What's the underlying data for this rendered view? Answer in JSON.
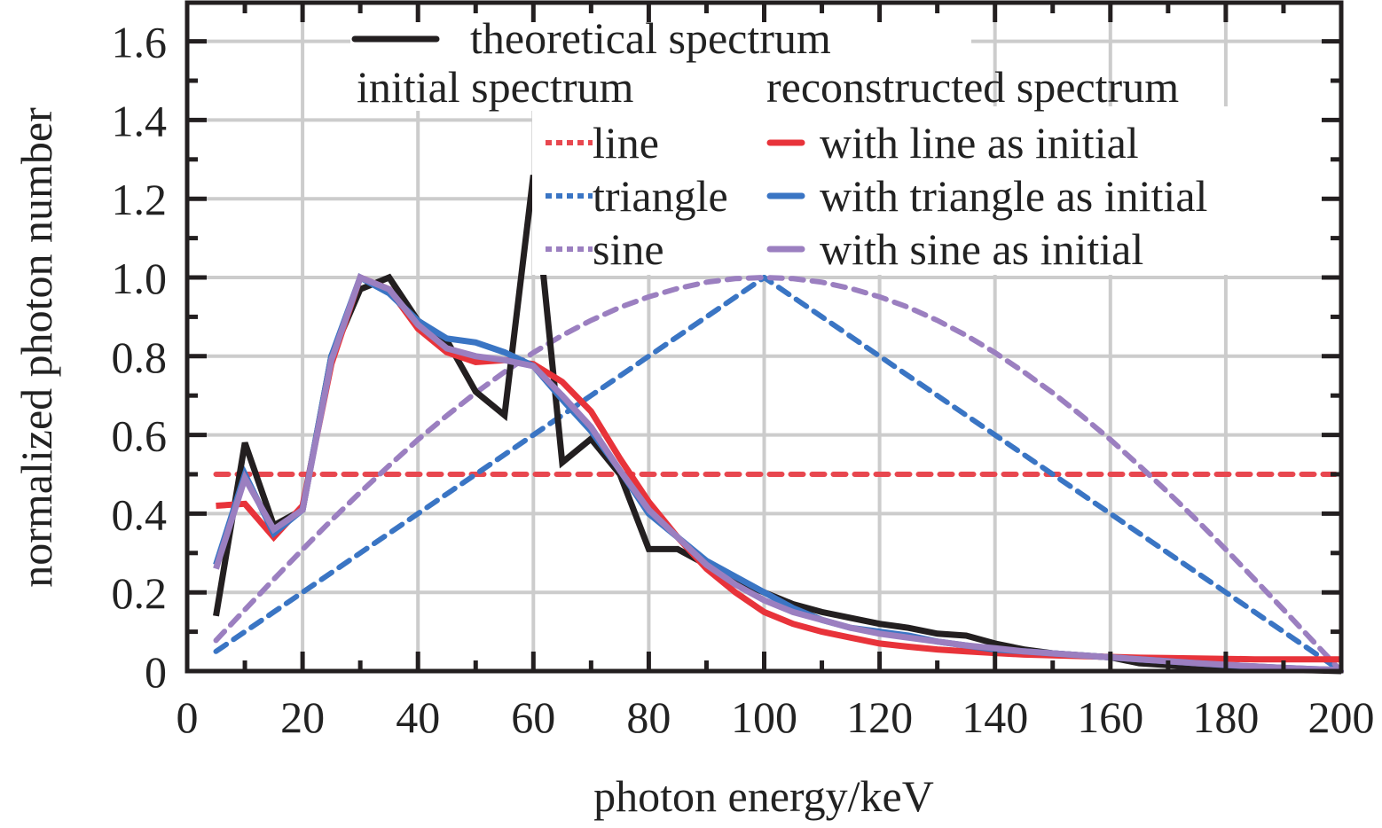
{
  "chart_data": {
    "type": "line",
    "title": "",
    "xlabel": "photon energy/keV",
    "ylabel": "normalized photon number",
    "xlim": [
      0,
      200
    ],
    "ylim": [
      0,
      1.7
    ],
    "x_ticks": [
      0,
      20,
      40,
      60,
      80,
      100,
      120,
      140,
      160,
      180,
      200
    ],
    "x_tick_labels": [
      "0",
      "20",
      "40",
      "60",
      "80",
      "100",
      "120",
      "140",
      "160",
      "180",
      "200"
    ],
    "y_ticks": [
      0,
      0.2,
      0.4,
      0.6,
      0.8,
      1.0,
      1.2,
      1.4,
      1.6
    ],
    "y_tick_labels": [
      "0",
      "0.2",
      "0.4",
      "0.6",
      "0.8",
      "1.0",
      "1.2",
      "1.4",
      "1.6"
    ],
    "grid": true,
    "legend": {
      "placement": "top-right",
      "header_theoretical": "theoretical spectrum",
      "header_initial": "initial spectrum",
      "header_reconstructed": "reconstructed spectrum",
      "initial_labels": [
        "line",
        "triangle",
        "sine"
      ],
      "reconstructed_labels": [
        "with line as initial",
        "with triangle as initial",
        "with sine as initial"
      ]
    },
    "x": [
      5,
      10,
      15,
      20,
      25,
      30,
      35,
      40,
      45,
      50,
      55,
      60,
      65,
      70,
      75,
      80,
      85,
      90,
      95,
      100,
      105,
      110,
      115,
      120,
      125,
      130,
      135,
      140,
      145,
      150,
      155,
      160,
      165,
      170,
      175,
      180,
      185,
      190,
      195,
      200
    ],
    "series": [
      {
        "name": "theoretical spectrum",
        "color": "#231f20",
        "style": "solid",
        "values": [
          0.14,
          0.58,
          0.37,
          0.41,
          0.8,
          0.97,
          1.0,
          0.89,
          0.84,
          0.71,
          0.65,
          1.26,
          0.53,
          0.59,
          0.5,
          0.31,
          0.31,
          0.27,
          0.23,
          0.2,
          0.17,
          0.15,
          0.135,
          0.12,
          0.11,
          0.095,
          0.09,
          0.07,
          0.055,
          0.045,
          0.04,
          0.035,
          0.02,
          0.015,
          0.01,
          0.008,
          0.005,
          0.003,
          0.002,
          0.0
        ]
      },
      {
        "name": "line",
        "color": "#e8474f",
        "style": "dashed",
        "values": [
          0.5,
          0.5,
          0.5,
          0.5,
          0.5,
          0.5,
          0.5,
          0.5,
          0.5,
          0.5,
          0.5,
          0.5,
          0.5,
          0.5,
          0.5,
          0.5,
          0.5,
          0.5,
          0.5,
          0.5,
          0.5,
          0.5,
          0.5,
          0.5,
          0.5,
          0.5,
          0.5,
          0.5,
          0.5,
          0.5,
          0.5,
          0.5,
          0.5,
          0.5,
          0.5,
          0.5,
          0.5,
          0.5,
          0.5,
          0.5
        ]
      },
      {
        "name": "triangle",
        "color": "#3a75c4",
        "style": "dashed",
        "values": [
          0.05,
          0.1,
          0.15,
          0.2,
          0.25,
          0.3,
          0.35,
          0.4,
          0.45,
          0.5,
          0.55,
          0.6,
          0.65,
          0.7,
          0.75,
          0.8,
          0.85,
          0.9,
          0.95,
          1.0,
          0.95,
          0.9,
          0.85,
          0.8,
          0.75,
          0.7,
          0.65,
          0.6,
          0.55,
          0.5,
          0.45,
          0.4,
          0.35,
          0.3,
          0.25,
          0.2,
          0.15,
          0.1,
          0.05,
          0.0
        ]
      },
      {
        "name": "sine",
        "color": "#9b7fc0",
        "style": "dashed",
        "values": [
          0.078,
          0.156,
          0.233,
          0.309,
          0.383,
          0.454,
          0.522,
          0.588,
          0.649,
          0.707,
          0.76,
          0.809,
          0.853,
          0.891,
          0.924,
          0.951,
          0.972,
          0.988,
          0.997,
          1.0,
          0.997,
          0.988,
          0.972,
          0.951,
          0.924,
          0.891,
          0.853,
          0.809,
          0.76,
          0.707,
          0.649,
          0.588,
          0.522,
          0.454,
          0.383,
          0.309,
          0.233,
          0.156,
          0.078,
          0.0
        ]
      },
      {
        "name": "with line as initial",
        "color": "#e8333a",
        "style": "solid",
        "values": [
          0.42,
          0.425,
          0.34,
          0.42,
          0.78,
          1.0,
          0.97,
          0.87,
          0.81,
          0.785,
          0.79,
          0.78,
          0.735,
          0.66,
          0.54,
          0.43,
          0.34,
          0.26,
          0.2,
          0.15,
          0.12,
          0.1,
          0.085,
          0.07,
          0.062,
          0.055,
          0.05,
          0.046,
          0.042,
          0.04,
          0.038,
          0.036,
          0.034,
          0.033,
          0.032,
          0.031,
          0.03,
          0.03,
          0.03,
          0.03
        ]
      },
      {
        "name": "with triangle as initial",
        "color": "#3a75c4",
        "style": "solid",
        "values": [
          0.27,
          0.5,
          0.35,
          0.41,
          0.8,
          1.0,
          0.96,
          0.89,
          0.845,
          0.835,
          0.81,
          0.775,
          0.69,
          0.61,
          0.51,
          0.4,
          0.34,
          0.28,
          0.24,
          0.2,
          0.16,
          0.13,
          0.11,
          0.1,
          0.09,
          0.075,
          0.065,
          0.055,
          0.05,
          0.045,
          0.04,
          0.035,
          0.03,
          0.025,
          0.02,
          0.015,
          0.012,
          0.008,
          0.005,
          0.003
        ]
      },
      {
        "name": "with sine as initial",
        "color": "#9b7fc0",
        "style": "solid",
        "values": [
          0.26,
          0.49,
          0.36,
          0.41,
          0.79,
          1.0,
          0.97,
          0.88,
          0.82,
          0.8,
          0.79,
          0.775,
          0.7,
          0.62,
          0.51,
          0.41,
          0.34,
          0.27,
          0.22,
          0.18,
          0.15,
          0.13,
          0.11,
          0.095,
          0.085,
          0.075,
          0.065,
          0.058,
          0.05,
          0.045,
          0.04,
          0.035,
          0.03,
          0.025,
          0.02,
          0.016,
          0.012,
          0.008,
          0.005,
          0.003
        ]
      }
    ]
  }
}
